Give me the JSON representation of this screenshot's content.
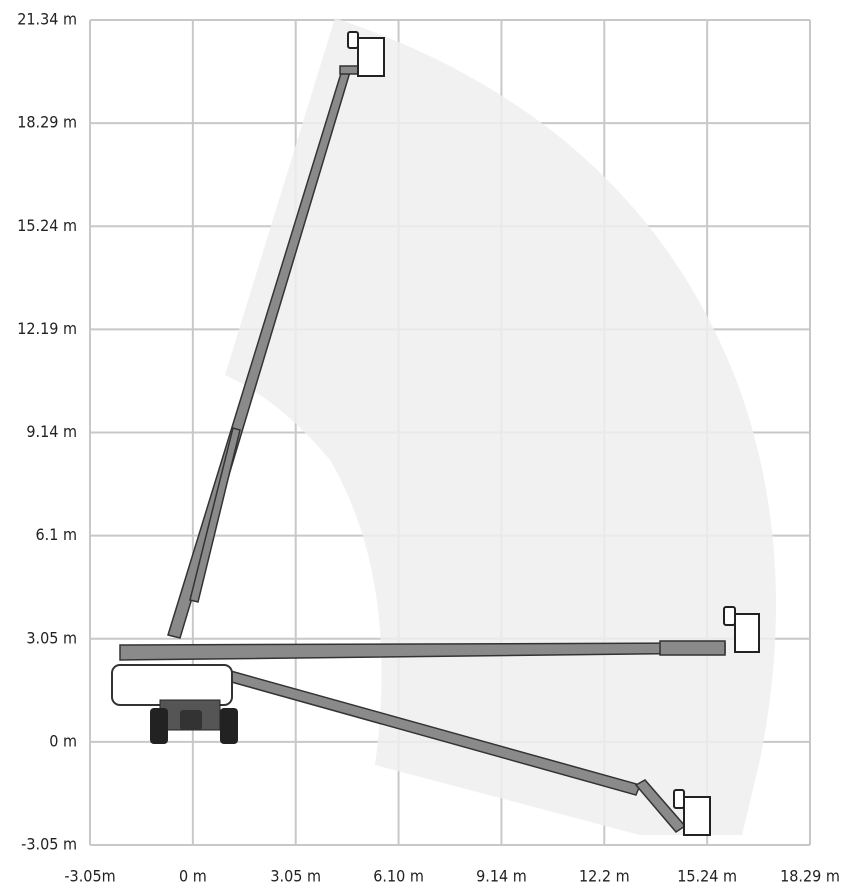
{
  "axes": {
    "x_labels": [
      "-3.05m",
      "0 m",
      "3.05 m",
      "6.10 m",
      "9.14 m",
      "12.2 m",
      "15.24 m",
      "18.29 m"
    ],
    "y_labels": [
      "21.34 m",
      "18.29 m",
      "15.24 m",
      "12.19 m",
      "9.14 m",
      "6.1 m",
      "3.05 m",
      "0 m",
      "-3.05 m"
    ]
  }
}
